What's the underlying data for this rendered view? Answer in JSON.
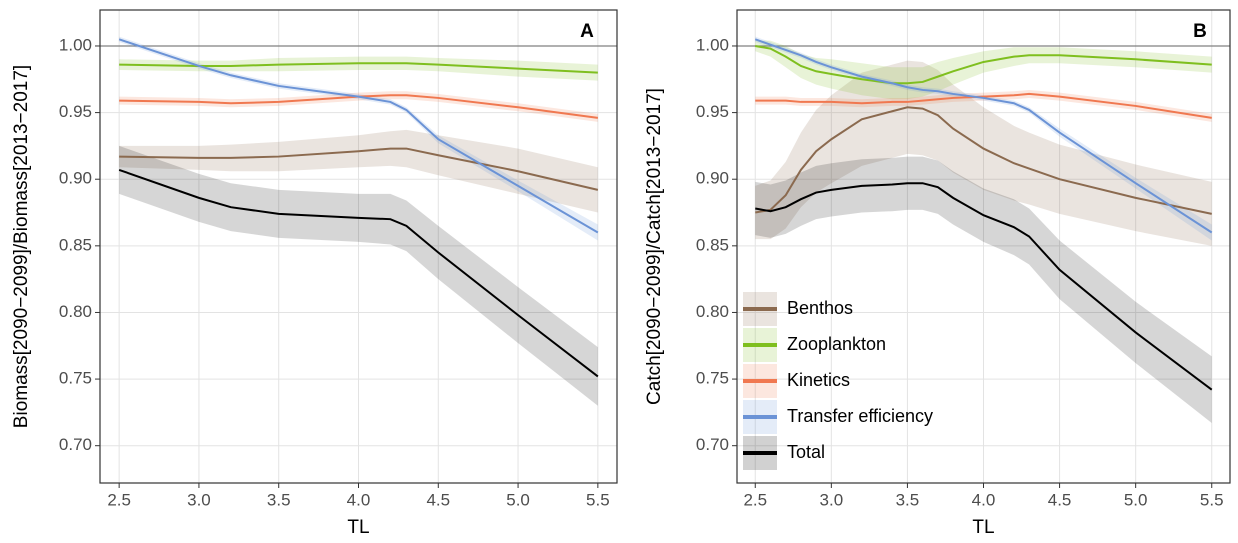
{
  "chart_data": [
    {
      "type": "line",
      "panel_label": "A",
      "xlabel": "TL",
      "ylabel": "Biomass[2090−2099]/Biomass[2013−2017]",
      "x": [
        2.5,
        3.0,
        3.2,
        3.5,
        4.0,
        4.2,
        4.3,
        4.5,
        5.0,
        5.5
      ],
      "xlim": [
        2.38,
        5.62
      ],
      "ylim": [
        0.672,
        1.027
      ],
      "xticks": [
        2.5,
        {
          "value": 3.0,
          "label": "3.0"
        },
        3.5,
        {
          "value": 4.0,
          "label": "4.0"
        },
        4.5,
        {
          "value": 5.0,
          "label": "5.0"
        },
        5.5
      ],
      "yticks": [
        {
          "value": 0.7,
          "label": "0.70"
        },
        0.75,
        {
          "value": 0.8,
          "label": "0.80"
        },
        0.85,
        {
          "value": 0.9,
          "label": "0.90"
        },
        0.95,
        {
          "value": 1.0,
          "label": "1.00"
        }
      ],
      "hline": 1.0,
      "grid": true,
      "series": [
        {
          "name": "Benthos",
          "color": "#8b6a4f",
          "values": [
            0.917,
            0.916,
            0.916,
            0.917,
            0.921,
            0.923,
            0.923,
            0.918,
            0.906,
            0.892
          ],
          "lower": [
            0.909,
            0.907,
            0.906,
            0.906,
            0.909,
            0.91,
            0.909,
            0.903,
            0.889,
            0.875
          ],
          "upper": [
            0.925,
            0.925,
            0.926,
            0.928,
            0.933,
            0.936,
            0.937,
            0.933,
            0.923,
            0.909
          ]
        },
        {
          "name": "Zooplankton",
          "color": "#7fbf1f",
          "values": [
            0.986,
            0.985,
            0.985,
            0.986,
            0.987,
            0.987,
            0.987,
            0.986,
            0.983,
            0.98
          ],
          "lower": [
            0.982,
            0.981,
            0.981,
            0.981,
            0.982,
            0.982,
            0.982,
            0.981,
            0.977,
            0.974
          ],
          "upper": [
            0.99,
            0.989,
            0.989,
            0.991,
            0.992,
            0.992,
            0.992,
            0.991,
            0.989,
            0.986
          ]
        },
        {
          "name": "Kinetics",
          "color": "#f07850",
          "values": [
            0.959,
            0.958,
            0.957,
            0.958,
            0.962,
            0.963,
            0.963,
            0.961,
            0.954,
            0.946
          ],
          "lower": [
            0.956,
            0.955,
            0.954,
            0.955,
            0.959,
            0.96,
            0.96,
            0.958,
            0.951,
            0.943
          ],
          "upper": [
            0.962,
            0.961,
            0.96,
            0.961,
            0.965,
            0.966,
            0.966,
            0.964,
            0.957,
            0.949
          ]
        },
        {
          "name": "Transfer efficiency",
          "color": "#6b93d6",
          "values": [
            1.005,
            0.985,
            0.978,
            0.97,
            0.962,
            0.958,
            0.952,
            0.93,
            0.895,
            0.86
          ],
          "lower": [
            1.003,
            0.983,
            0.976,
            0.968,
            0.96,
            0.956,
            0.95,
            0.927,
            0.891,
            0.854
          ],
          "upper": [
            1.007,
            0.987,
            0.98,
            0.972,
            0.964,
            0.96,
            0.954,
            0.933,
            0.899,
            0.866
          ]
        },
        {
          "name": "Total",
          "color": "#000000",
          "values": [
            0.907,
            0.886,
            0.879,
            0.874,
            0.871,
            0.87,
            0.865,
            0.845,
            0.798,
            0.752
          ],
          "lower": [
            0.889,
            0.868,
            0.861,
            0.856,
            0.853,
            0.851,
            0.846,
            0.825,
            0.777,
            0.73
          ],
          "upper": [
            0.925,
            0.904,
            0.897,
            0.892,
            0.889,
            0.889,
            0.884,
            0.865,
            0.819,
            0.774
          ]
        }
      ]
    },
    {
      "type": "line",
      "panel_label": "B",
      "xlabel": "TL",
      "ylabel": "Catch[2090−2099]/Catch[2013−2017]",
      "x": [
        2.5,
        2.6,
        2.7,
        2.8,
        2.9,
        3.0,
        3.2,
        3.4,
        3.5,
        3.6,
        3.7,
        3.8,
        4.0,
        4.2,
        4.3,
        4.5,
        5.0,
        5.5
      ],
      "xlim": [
        2.38,
        5.62
      ],
      "ylim": [
        0.672,
        1.027
      ],
      "xticks": [
        2.5,
        {
          "value": 3.0,
          "label": "3.0"
        },
        3.5,
        {
          "value": 4.0,
          "label": "4.0"
        },
        4.5,
        {
          "value": 5.0,
          "label": "5.0"
        },
        5.5
      ],
      "yticks": [
        {
          "value": 0.7,
          "label": "0.70"
        },
        0.75,
        {
          "value": 0.8,
          "label": "0.80"
        },
        0.85,
        {
          "value": 0.9,
          "label": "0.90"
        },
        0.95,
        {
          "value": 1.0,
          "label": "1.00"
        }
      ],
      "hline": 1.0,
      "grid": true,
      "legend": "lower left",
      "series": [
        {
          "name": "Benthos",
          "color": "#8b6a4f",
          "values": [
            0.875,
            0.877,
            0.888,
            0.907,
            0.921,
            0.93,
            0.945,
            0.951,
            0.954,
            0.953,
            0.948,
            0.938,
            0.923,
            0.912,
            0.908,
            0.9,
            0.886,
            0.874
          ],
          "lower": [
            0.855,
            0.855,
            0.863,
            0.879,
            0.89,
            0.897,
            0.91,
            0.916,
            0.919,
            0.918,
            0.914,
            0.905,
            0.892,
            0.884,
            0.881,
            0.874,
            0.861,
            0.85
          ],
          "upper": [
            0.895,
            0.899,
            0.913,
            0.935,
            0.952,
            0.963,
            0.98,
            0.986,
            0.989,
            0.988,
            0.982,
            0.971,
            0.954,
            0.94,
            0.935,
            0.926,
            0.911,
            0.898
          ]
        },
        {
          "name": "Zooplankton",
          "color": "#7fbf1f",
          "values": [
            1.0,
            0.998,
            0.992,
            0.985,
            0.981,
            0.979,
            0.975,
            0.972,
            0.972,
            0.973,
            0.977,
            0.981,
            0.988,
            0.992,
            0.993,
            0.993,
            0.99,
            0.986
          ],
          "lower": [
            0.996,
            0.992,
            0.984,
            0.976,
            0.971,
            0.968,
            0.963,
            0.96,
            0.96,
            0.962,
            0.966,
            0.971,
            0.98,
            0.985,
            0.987,
            0.987,
            0.984,
            0.98
          ],
          "upper": [
            1.004,
            1.004,
            1.0,
            0.994,
            0.991,
            0.99,
            0.987,
            0.984,
            0.984,
            0.984,
            0.988,
            0.991,
            0.996,
            0.999,
            0.999,
            0.999,
            0.996,
            0.992
          ]
        },
        {
          "name": "Kinetics",
          "color": "#f07850",
          "values": [
            0.959,
            0.959,
            0.959,
            0.958,
            0.958,
            0.958,
            0.957,
            0.958,
            0.958,
            0.959,
            0.96,
            0.961,
            0.962,
            0.963,
            0.964,
            0.962,
            0.955,
            0.946
          ],
          "lower": [
            0.956,
            0.956,
            0.956,
            0.955,
            0.955,
            0.955,
            0.954,
            0.955,
            0.955,
            0.956,
            0.957,
            0.958,
            0.959,
            0.96,
            0.961,
            0.959,
            0.952,
            0.943
          ],
          "upper": [
            0.962,
            0.962,
            0.962,
            0.961,
            0.961,
            0.961,
            0.96,
            0.961,
            0.961,
            0.962,
            0.963,
            0.964,
            0.965,
            0.966,
            0.967,
            0.965,
            0.958,
            0.949
          ]
        },
        {
          "name": "Transfer efficiency",
          "color": "#6b93d6",
          "values": [
            1.005,
            1.001,
            0.997,
            0.993,
            0.988,
            0.984,
            0.977,
            0.972,
            0.969,
            0.967,
            0.966,
            0.964,
            0.961,
            0.957,
            0.952,
            0.935,
            0.897,
            0.86
          ],
          "lower": [
            1.003,
            0.999,
            0.995,
            0.991,
            0.986,
            0.982,
            0.975,
            0.97,
            0.967,
            0.965,
            0.964,
            0.962,
            0.959,
            0.955,
            0.95,
            0.932,
            0.893,
            0.854
          ],
          "upper": [
            1.007,
            1.003,
            0.999,
            0.995,
            0.99,
            0.986,
            0.979,
            0.974,
            0.971,
            0.969,
            0.968,
            0.966,
            0.963,
            0.959,
            0.954,
            0.938,
            0.901,
            0.866
          ]
        },
        {
          "name": "Total",
          "color": "#000000",
          "values": [
            0.878,
            0.876,
            0.879,
            0.885,
            0.89,
            0.892,
            0.895,
            0.896,
            0.897,
            0.897,
            0.894,
            0.886,
            0.873,
            0.864,
            0.857,
            0.832,
            0.785,
            0.742
          ],
          "lower": [
            0.858,
            0.856,
            0.859,
            0.865,
            0.87,
            0.872,
            0.875,
            0.876,
            0.877,
            0.877,
            0.874,
            0.866,
            0.853,
            0.843,
            0.836,
            0.81,
            0.762,
            0.717
          ],
          "upper": [
            0.898,
            0.896,
            0.899,
            0.905,
            0.91,
            0.912,
            0.915,
            0.916,
            0.917,
            0.917,
            0.914,
            0.906,
            0.893,
            0.885,
            0.878,
            0.854,
            0.808,
            0.767
          ]
        }
      ]
    }
  ]
}
